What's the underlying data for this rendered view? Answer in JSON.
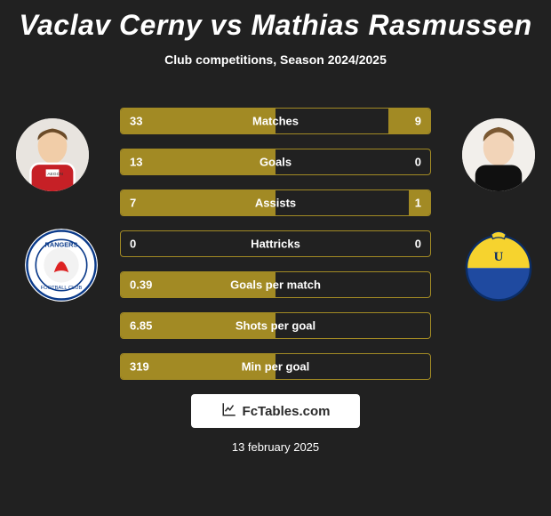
{
  "title": "Vaclav Cerny vs Mathias Rasmussen",
  "subtitle": "Club competitions, Season 2024/2025",
  "date": "13 february 2025",
  "brand": "FcTables.com",
  "colors": {
    "background": "#212121",
    "row_border": "#a28a24",
    "fill": "#a28a24",
    "text": "#ffffff"
  },
  "players": {
    "left": {
      "name": "Vaclav Cerny"
    },
    "right": {
      "name": "Mathias Rasmussen"
    }
  },
  "rows": [
    {
      "label": "Matches",
      "left": "33",
      "right": "9",
      "left_pct": 100,
      "right_pct": 27
    },
    {
      "label": "Goals",
      "left": "13",
      "right": "0",
      "left_pct": 100,
      "right_pct": 0
    },
    {
      "label": "Assists",
      "left": "7",
      "right": "1",
      "left_pct": 100,
      "right_pct": 14
    },
    {
      "label": "Hattricks",
      "left": "0",
      "right": "0",
      "left_pct": 0,
      "right_pct": 0
    },
    {
      "label": "Goals per match",
      "left": "0.39",
      "right": "",
      "left_pct": 100,
      "right_pct": 0
    },
    {
      "label": "Shots per goal",
      "left": "6.85",
      "right": "",
      "left_pct": 100,
      "right_pct": 0
    },
    {
      "label": "Min per goal",
      "left": "319",
      "right": "",
      "left_pct": 100,
      "right_pct": 0
    }
  ]
}
